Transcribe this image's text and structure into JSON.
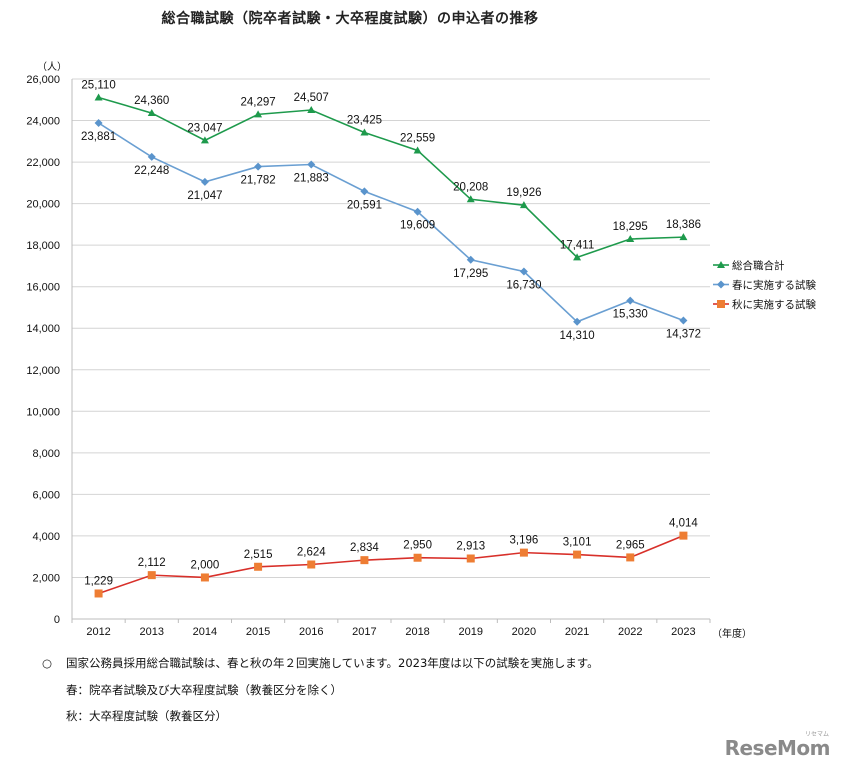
{
  "chart_data": {
    "type": "line",
    "title": "総合職試験（院卒者試験・大卒程度試験）の申込者の推移",
    "ylabel": "（人）",
    "xlabel": "（年度）",
    "ylim": [
      0,
      26000
    ],
    "ytick_step": 2000,
    "yticks": [
      "0",
      "2,000",
      "4,000",
      "6,000",
      "8,000",
      "10,000",
      "12,000",
      "14,000",
      "16,000",
      "18,000",
      "20,000",
      "22,000",
      "24,000",
      "26,000"
    ],
    "categories": [
      "2012",
      "2013",
      "2014",
      "2015",
      "2016",
      "2017",
      "2018",
      "2019",
      "2020",
      "2021",
      "2022",
      "2023"
    ],
    "grid": true,
    "legend_position": "right",
    "series": [
      {
        "name": "総合職合計",
        "marker": "triangle",
        "color": "#1e9a4c",
        "line_color": "#1e9a4c",
        "label_position": "above",
        "values": [
          25110,
          24360,
          23047,
          24297,
          24507,
          23425,
          22559,
          20208,
          19926,
          17411,
          18295,
          18386
        ],
        "labels": [
          "25,110",
          "24,360",
          "23,047",
          "24,297",
          "24,507",
          "23,425",
          "22,559",
          "20,208",
          "19,926",
          "17,411",
          "18,295",
          "18,386"
        ]
      },
      {
        "name": "春に実施する試験",
        "marker": "diamond",
        "color": "#5a94cc",
        "line_color": "#6a9fd2",
        "label_position": "below",
        "values": [
          23881,
          22248,
          21047,
          21782,
          21883,
          20591,
          19609,
          17295,
          16730,
          14310,
          15330,
          14372
        ],
        "labels": [
          "23,881",
          "22,248",
          "21,047",
          "21,782",
          "21,883",
          "20,591",
          "19,609",
          "17,295",
          "16,730",
          "14,310",
          "15,330",
          "14,372"
        ]
      },
      {
        "name": "秋に実施する試験",
        "marker": "square",
        "color": "#ee7d33",
        "line_color": "#d8302a",
        "label_position": "above",
        "values": [
          1229,
          2112,
          2000,
          2515,
          2624,
          2834,
          2950,
          2913,
          3196,
          3101,
          2965,
          4014
        ],
        "labels": [
          "1,229",
          "2,112",
          "2,000",
          "2,515",
          "2,624",
          "2,834",
          "2,950",
          "2,913",
          "3,196",
          "3,101",
          "2,965",
          "4,014"
        ]
      }
    ]
  },
  "notes": {
    "bullet": "○",
    "line1": "国家公務員採用総合職試験は、春と秋の年２回実施しています。2023年度は以下の試験を実施します。",
    "line2": "春：院卒者試験及び大卒程度試験（教養区分を除く）",
    "line3": "秋：大卒程度試験（教養区分）"
  },
  "logo": {
    "text": "ReseMom",
    "sub": "リセマム"
  }
}
